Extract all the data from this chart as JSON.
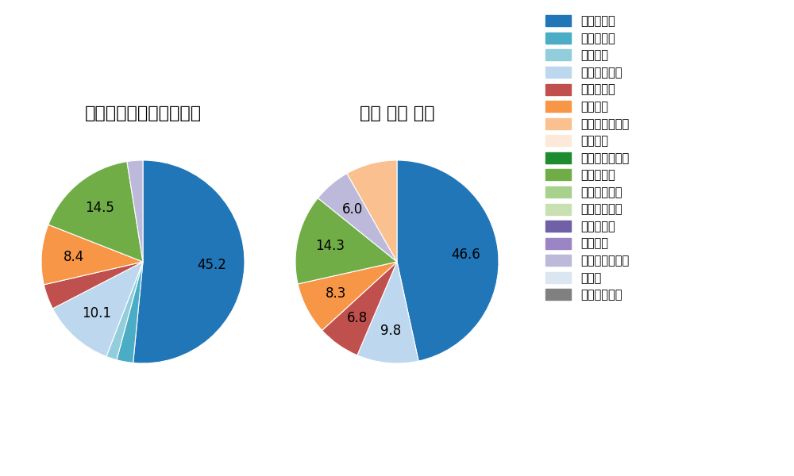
{
  "left_title": "セ・リーグ全プレイヤー",
  "right_title": "若林 楽人 選手",
  "legend_labels": [
    "ストレート",
    "ツーシーム",
    "シュート",
    "カットボール",
    "スプリット",
    "フォーク",
    "チェンジアップ",
    "シンカー",
    "高速スライダー",
    "スライダー",
    "縦スライダー",
    "パワーカーブ",
    "スクリュー",
    "ナックル",
    "ナックルカーブ",
    "カーブ",
    "スローカーブ"
  ],
  "legend_colors": [
    "#2176b8",
    "#4bacc6",
    "#92cddc",
    "#bdd7ee",
    "#c0504d",
    "#f79646",
    "#fac090",
    "#fde9d9",
    "#1e8c2e",
    "#70ad47",
    "#a9d18e",
    "#c9e0b3",
    "#7060a8",
    "#9b85c4",
    "#bdb9da",
    "#dce6f1",
    "#808080"
  ],
  "left_slices": [
    45.2,
    2.3,
    1.5,
    10.1,
    3.5,
    8.4,
    14.5,
    2.2
  ],
  "left_colors": [
    "#2176b8",
    "#4bacc6",
    "#92cddc",
    "#bdd7ee",
    "#c0504d",
    "#f79646",
    "#70ad47",
    "#bdb9da"
  ],
  "left_labels": [
    "45.2",
    "",
    "",
    "10.1",
    "",
    "8.4",
    "14.5",
    ""
  ],
  "left_label_show": [
    true,
    false,
    false,
    true,
    false,
    true,
    true,
    false
  ],
  "right_slices": [
    46.6,
    9.8,
    6.8,
    8.3,
    14.3,
    6.0,
    8.2
  ],
  "right_colors": [
    "#2176b8",
    "#bdd7ee",
    "#c0504d",
    "#f79646",
    "#70ad47",
    "#bdb9da",
    "#fac090"
  ],
  "right_labels": [
    "46.6",
    "9.8",
    "6.8",
    "8.3",
    "14.3",
    "6.0",
    ""
  ],
  "right_label_show": [
    true,
    true,
    true,
    true,
    true,
    true,
    false
  ],
  "background_color": "#ffffff",
  "title_fontsize": 16,
  "label_fontsize": 12
}
